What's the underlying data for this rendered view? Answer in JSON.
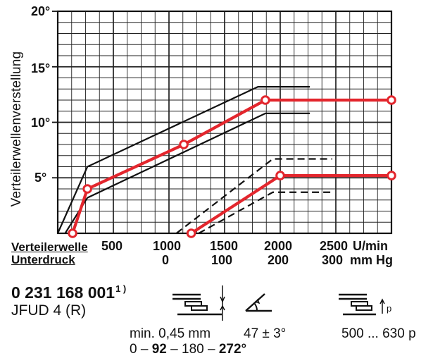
{
  "chart_data": {
    "type": "line",
    "ylabel": "Verteilerwellenverstellung",
    "y_ticks": [
      "5°",
      "10°",
      "15°",
      "20°"
    ],
    "ylim": [
      0,
      20
    ],
    "x_rows": [
      {
        "label": "Verteilerwelle",
        "ticks": [
          "500",
          "1000",
          "1500",
          "2000",
          "2500"
        ],
        "unit": "U/min"
      },
      {
        "label": "Unterdruck",
        "ticks": [
          "0",
          "100",
          "200",
          "300"
        ],
        "unit": "mm Hg"
      }
    ],
    "xlim": [
      500,
      2750
    ],
    "grid": true,
    "series": [
      {
        "values": [
          {
            "x": 600,
            "y": 0
          },
          {
            "x": 700,
            "y": 4
          },
          {
            "x": 1350,
            "y": 8
          },
          {
            "x": 1900,
            "y": 12
          },
          {
            "x": 2750,
            "y": 12
          }
        ]
      },
      {
        "values": [
          {
            "x": 1400,
            "y": 0
          },
          {
            "x": 2000,
            "y": 5.2
          },
          {
            "x": 2750,
            "y": 5.2
          }
        ]
      }
    ],
    "tolerance_bands": [
      {
        "style": "solid",
        "upper": [
          {
            "x": 500,
            "y": 0
          },
          {
            "x": 700,
            "y": 6
          },
          {
            "x": 1850,
            "y": 13.2
          },
          {
            "x": 2200,
            "y": 13.2
          }
        ],
        "lower": [
          {
            "x": 550,
            "y": 0
          },
          {
            "x": 700,
            "y": 3.2
          },
          {
            "x": 1900,
            "y": 10.8
          },
          {
            "x": 2200,
            "y": 10.8
          }
        ]
      },
      {
        "style": "dashed",
        "upper": [
          {
            "x": 1300,
            "y": 0
          },
          {
            "x": 1950,
            "y": 6.7
          },
          {
            "x": 2350,
            "y": 6.7
          }
        ],
        "lower": [
          {
            "x": 1450,
            "y": 0
          },
          {
            "x": 1950,
            "y": 3.7
          },
          {
            "x": 2350,
            "y": 3.7
          }
        ]
      }
    ]
  },
  "specs": {
    "part_number": "0 231 168 001",
    "part_footnote": "1 )",
    "model": "JFUD 4 (R)",
    "gap_value": "min. 0,45 mm",
    "angle_value": "47 ± 3°",
    "pressure_value": "500 ... 630 p",
    "pressure_icon_label": "p",
    "sequence": [
      "0",
      "92",
      "180",
      "272°"
    ],
    "sequence_separator": "–"
  },
  "icons": {
    "gap": "contact-gap-icon",
    "angle": "dwell-angle-icon",
    "pressure": "spring-pressure-icon"
  },
  "colors": {
    "curve": "#e3262d",
    "ink": "#111111",
    "grid": "#222222",
    "point_fill": "#ffffff"
  }
}
